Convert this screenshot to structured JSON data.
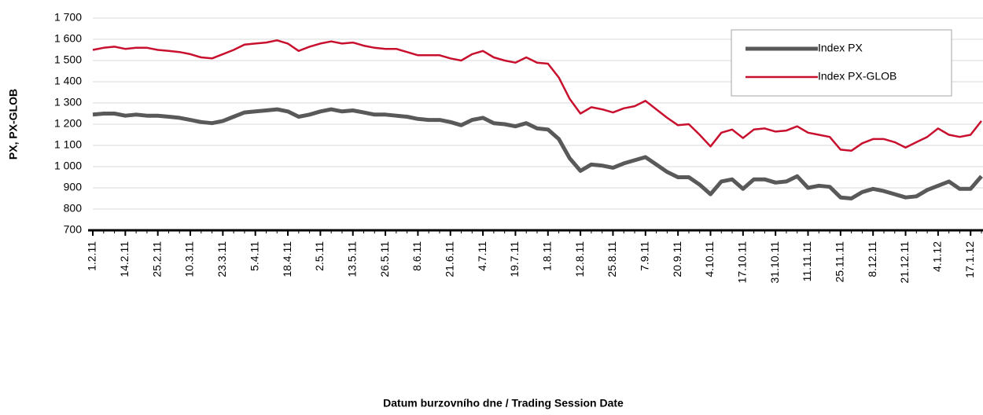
{
  "chart_data": {
    "type": "line",
    "x_label": "Datum burzovního dne / Trading Session Date",
    "y_label": "PX, PX-GLOB",
    "categories": [
      "1.2.11",
      null,
      null,
      "14.2.11",
      null,
      null,
      "25.2.11",
      null,
      null,
      "10.3.11",
      null,
      null,
      "23.3.11",
      null,
      null,
      "5.4.11",
      null,
      null,
      "18.4.11",
      null,
      null,
      "2.5.11",
      null,
      null,
      "13.5.11",
      null,
      null,
      "26.5.11",
      null,
      null,
      "8.6.11",
      null,
      null,
      "21.6.11",
      null,
      null,
      "4.7.11",
      null,
      null,
      "19.7.11",
      null,
      null,
      "1.8.11",
      null,
      null,
      "12.8.11",
      null,
      null,
      "25.8.11",
      null,
      null,
      "7.9.11",
      null,
      null,
      "20.9.11",
      null,
      null,
      "4.10.11",
      null,
      null,
      "17.10.11",
      null,
      null,
      "31.10.11",
      null,
      null,
      "11.11.11",
      null,
      null,
      "25.11.11",
      null,
      null,
      "8.12.11",
      null,
      null,
      "21.12.11",
      null,
      null,
      "4.1.12",
      null,
      null,
      "17.1.12",
      null
    ],
    "series": [
      {
        "name": "Index PX",
        "color": "#595959",
        "width": 5,
        "values": [
          1245,
          1250,
          1250,
          1240,
          1245,
          1240,
          1240,
          1235,
          1230,
          1220,
          1210,
          1205,
          1215,
          1235,
          1255,
          1260,
          1265,
          1270,
          1260,
          1235,
          1245,
          1260,
          1270,
          1260,
          1265,
          1255,
          1245,
          1245,
          1240,
          1235,
          1225,
          1220,
          1220,
          1210,
          1195,
          1220,
          1230,
          1205,
          1200,
          1190,
          1205,
          1180,
          1175,
          1130,
          1040,
          980,
          1010,
          1005,
          995,
          1015,
          1030,
          1045,
          1010,
          975,
          950,
          950,
          915,
          870,
          930,
          940,
          895,
          940,
          940,
          925,
          930,
          955,
          900,
          910,
          905,
          855,
          850,
          880,
          895,
          885,
          870,
          855,
          860,
          890,
          910,
          930,
          895,
          895,
          955
        ]
      },
      {
        "name": "Index PX-GLOB",
        "color": "#c8102e",
        "width": 2.5,
        "values": [
          1550,
          1560,
          1565,
          1555,
          1560,
          1560,
          1550,
          1545,
          1540,
          1530,
          1515,
          1510,
          1530,
          1550,
          1575,
          1580,
          1585,
          1595,
          1580,
          1545,
          1565,
          1580,
          1590,
          1580,
          1585,
          1570,
          1560,
          1555,
          1555,
          1540,
          1525,
          1525,
          1525,
          1510,
          1500,
          1530,
          1545,
          1515,
          1500,
          1490,
          1515,
          1490,
          1485,
          1420,
          1320,
          1250,
          1280,
          1270,
          1255,
          1275,
          1285,
          1310,
          1270,
          1230,
          1195,
          1200,
          1150,
          1095,
          1160,
          1175,
          1135,
          1175,
          1180,
          1165,
          1170,
          1190,
          1160,
          1150,
          1140,
          1080,
          1075,
          1110,
          1130,
          1130,
          1115,
          1090,
          1115,
          1140,
          1180,
          1150,
          1140,
          1150,
          1215
        ]
      }
    ],
    "ylim": [
      700,
      1700
    ],
    "yticks": [
      700,
      800,
      900,
      {
        "value": 1000,
        "label": "1 000"
      },
      {
        "value": 1100,
        "label": "1 100"
      },
      {
        "value": 1200,
        "label": "1 200"
      },
      {
        "value": 1300,
        "label": "1 300"
      },
      {
        "value": 1400,
        "label": "1 400"
      },
      {
        "value": 1500,
        "label": "1 500"
      },
      {
        "value": 1600,
        "label": "1 600"
      },
      {
        "value": 1700,
        "label": "1 700"
      }
    ],
    "grid": true,
    "legend": "upper right"
  }
}
